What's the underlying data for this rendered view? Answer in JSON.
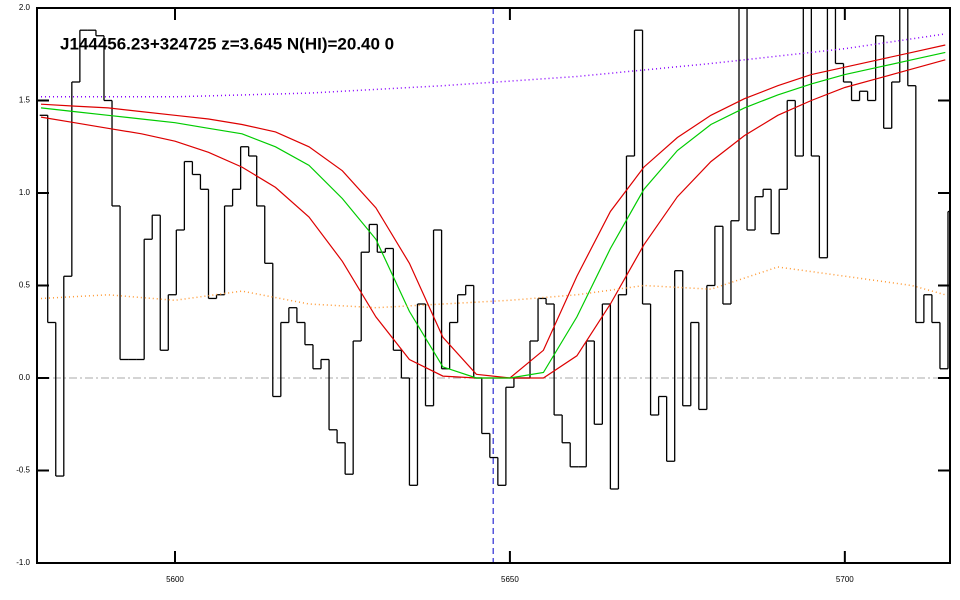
{
  "chart_data": {
    "type": "line",
    "title": "J144456.23+324725 z=3.645 N(HI)=20.40 0",
    "xlim": [
      5579.4,
      5715.7
    ],
    "ylim": [
      -1,
      2
    ],
    "xticks": [
      5600,
      5650,
      5700
    ],
    "yticks": [
      {
        "value": -1,
        "label": "-1.0"
      },
      {
        "value": -0.5,
        "label": "-0.5"
      },
      {
        "value": 0,
        "label": "0.0"
      },
      {
        "value": 0.5,
        "label": "0.5"
      },
      {
        "value": 1,
        "label": "1.0"
      },
      {
        "value": 1.5,
        "label": "1.5"
      },
      {
        "value": 2,
        "label": "2.0"
      }
    ],
    "hline": 0,
    "hline_color": "#aaaaaa",
    "vline": 5647.5,
    "vline_color": "#0000cc",
    "series": [
      {
        "color": "#000000",
        "style": "steps",
        "x": [
          5580.4,
          5581.6,
          5582.8,
          5584.0,
          5585.2,
          5586.4,
          5587.6,
          5588.8,
          5590.0,
          5591.2,
          5592.4,
          5593.6,
          5594.8,
          5596.0,
          5597.2,
          5598.4,
          5599.6,
          5600.8,
          5602.0,
          5603.2,
          5604.4,
          5605.6,
          5606.8,
          5608.0,
          5609.2,
          5610.4,
          5611.6,
          5612.8,
          5614.0,
          5615.2,
          5616.4,
          5617.6,
          5618.8,
          5620.0,
          5621.2,
          5622.4,
          5623.6,
          5624.8,
          5626.0,
          5627.2,
          5628.4,
          5629.6,
          5630.8,
          5632.0,
          5633.2,
          5634.4,
          5635.6,
          5636.8,
          5638.0,
          5639.2,
          5640.4,
          5641.6,
          5642.8,
          5644.0,
          5645.2,
          5646.4,
          5647.6,
          5648.8,
          5650.0,
          5651.2,
          5652.4,
          5653.6,
          5654.8,
          5656.0,
          5657.2,
          5658.4,
          5659.6,
          5660.8,
          5662.0,
          5663.2,
          5664.4,
          5665.6,
          5666.8,
          5668.0,
          5669.2,
          5670.4,
          5671.6,
          5672.8,
          5674.0,
          5675.2,
          5676.4,
          5677.6,
          5678.8,
          5680.0,
          5681.2,
          5682.4,
          5683.6,
          5684.8,
          5686.0,
          5687.2,
          5688.4,
          5689.6,
          5690.8,
          5692.0,
          5693.2,
          5694.4,
          5695.6,
          5696.8,
          5698.0,
          5699.2,
          5700.4,
          5701.6,
          5702.8,
          5704.0,
          5705.2,
          5706.4,
          5707.6,
          5708.8,
          5710.0,
          5711.2,
          5712.4,
          5713.6,
          5714.8,
          5716.0
        ],
        "values": [
          1.42,
          0.3,
          -0.53,
          0.55,
          1.6,
          1.88,
          1.88,
          1.85,
          1.5,
          0.93,
          0.1,
          0.1,
          0.1,
          0.75,
          0.88,
          0.15,
          0.45,
          0.8,
          1.17,
          1.1,
          1.02,
          0.43,
          0.45,
          0.93,
          1.02,
          1.25,
          1.2,
          0.93,
          0.62,
          -0.1,
          0.3,
          0.38,
          0.3,
          0.18,
          0.05,
          0.1,
          -0.28,
          -0.35,
          -0.52,
          0.2,
          0.68,
          0.83,
          0.68,
          0.7,
          0.15,
          0.0,
          -0.58,
          0.4,
          -0.15,
          0.8,
          0.05,
          0.3,
          0.45,
          0.5,
          0.0,
          -0.3,
          -0.43,
          -0.58,
          -0.05,
          0.0,
          0.0,
          0.2,
          0.43,
          0.4,
          -0.2,
          -0.35,
          -0.48,
          -0.48,
          0.2,
          -0.25,
          0.4,
          -0.6,
          0.45,
          1.2,
          1.88,
          0.4,
          -0.2,
          -0.1,
          -0.45,
          0.58,
          -0.15,
          0.3,
          -0.17,
          0.5,
          0.82,
          0.4,
          0.85,
          2.05,
          0.8,
          0.98,
          1.02,
          0.78,
          1.02,
          1.5,
          1.2,
          2.05,
          1.2,
          0.65,
          2.05,
          1.7,
          1.6,
          1.5,
          1.55,
          1.5,
          1.85,
          1.35,
          1.6,
          2.05,
          1.58,
          0.3,
          0.45,
          0.3,
          0.05,
          0.9
        ]
      },
      {
        "color": "#dd0000",
        "style": "solid",
        "x": [
          5580,
          5585,
          5590,
          5595,
          5600,
          5605,
          5610,
          5615,
          5620,
          5625,
          5630,
          5635,
          5640,
          5645,
          5650,
          5655,
          5660,
          5665,
          5670,
          5675,
          5680,
          5685,
          5690,
          5695,
          5700,
          5705,
          5710,
          5715
        ],
        "values": [
          1.48,
          1.47,
          1.46,
          1.44,
          1.42,
          1.4,
          1.37,
          1.33,
          1.25,
          1.12,
          0.92,
          0.62,
          0.22,
          0.02,
          0.0,
          0.15,
          0.55,
          0.9,
          1.14,
          1.3,
          1.42,
          1.51,
          1.58,
          1.64,
          1.68,
          1.72,
          1.76,
          1.8
        ]
      },
      {
        "color": "#dd0000",
        "style": "solid",
        "x": [
          5580,
          5585,
          5590,
          5595,
          5600,
          5605,
          5610,
          5615,
          5620,
          5625,
          5630,
          5635,
          5640,
          5645,
          5650,
          5655,
          5660,
          5665,
          5670,
          5675,
          5680,
          5685,
          5690,
          5695,
          5700,
          5705,
          5710,
          5715
        ],
        "values": [
          1.41,
          1.38,
          1.35,
          1.32,
          1.28,
          1.22,
          1.14,
          1.03,
          0.87,
          0.63,
          0.33,
          0.1,
          0.01,
          0.0,
          0.0,
          0.0,
          0.12,
          0.4,
          0.72,
          0.98,
          1.17,
          1.31,
          1.42,
          1.5,
          1.57,
          1.62,
          1.67,
          1.72
        ]
      },
      {
        "color": "#00cc00",
        "style": "solid",
        "x": [
          5580,
          5585,
          5590,
          5595,
          5600,
          5605,
          5610,
          5615,
          5620,
          5625,
          5630,
          5635,
          5640,
          5645,
          5650,
          5655,
          5660,
          5665,
          5670,
          5675,
          5680,
          5685,
          5690,
          5695,
          5700,
          5705,
          5710,
          5715
        ],
        "values": [
          1.46,
          1.44,
          1.42,
          1.4,
          1.38,
          1.35,
          1.32,
          1.25,
          1.15,
          0.97,
          0.75,
          0.36,
          0.06,
          0.0,
          0.0,
          0.03,
          0.33,
          0.7,
          1.02,
          1.23,
          1.37,
          1.46,
          1.53,
          1.59,
          1.64,
          1.68,
          1.72,
          1.76
        ]
      },
      {
        "color": "#8800ff",
        "style": "dotted",
        "x": [
          5580,
          5600,
          5620,
          5640,
          5660,
          5680,
          5700,
          5715
        ],
        "values": [
          1.52,
          1.52,
          1.54,
          1.58,
          1.63,
          1.7,
          1.78,
          1.86
        ]
      },
      {
        "color": "#ff9933",
        "style": "dotted",
        "x": [
          5580,
          5590,
          5600,
          5610,
          5620,
          5630,
          5640,
          5650,
          5660,
          5670,
          5680,
          5690,
          5700,
          5710,
          5715
        ],
        "values": [
          0.43,
          0.45,
          0.42,
          0.47,
          0.4,
          0.38,
          0.4,
          0.42,
          0.45,
          0.5,
          0.48,
          0.6,
          0.55,
          0.5,
          0.45
        ]
      }
    ]
  }
}
